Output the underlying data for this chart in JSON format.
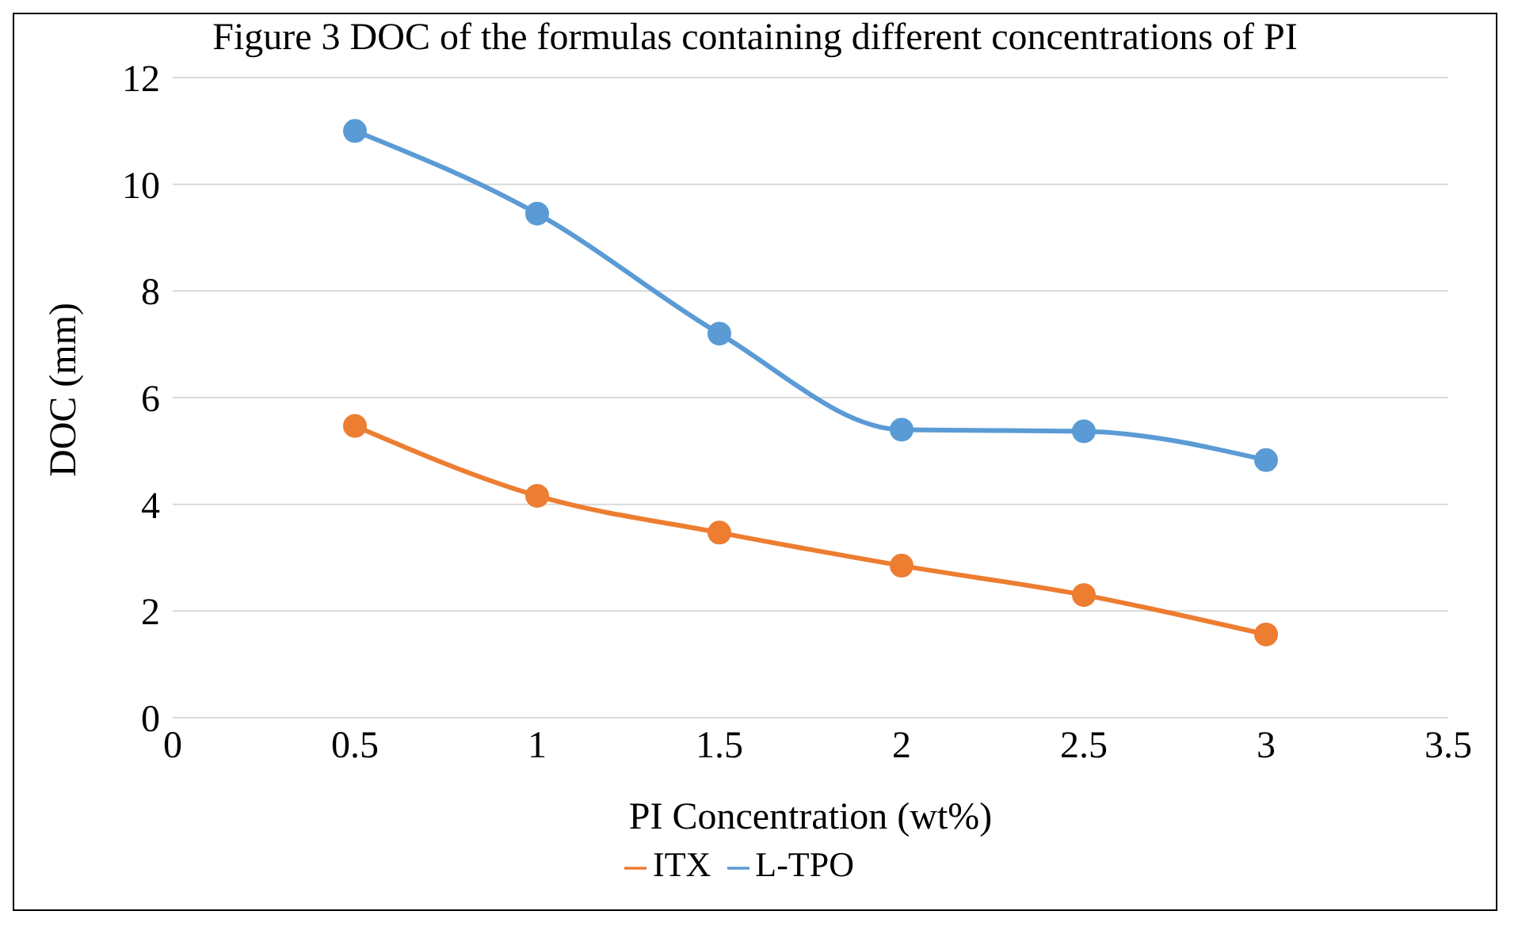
{
  "chart_data": {
    "type": "line",
    "title": "Figure 3 DOC of the formulas containing different concentrations of PI",
    "xlabel": "PI Concentration (wt%)",
    "ylabel": "DOC (mm)",
    "x": [
      0.5,
      1,
      1.5,
      2,
      2.5,
      3
    ],
    "series": [
      {
        "name": "L-TPO",
        "color": "#5b9bd5",
        "values": [
          11.0,
          9.45,
          7.2,
          5.4,
          5.37,
          4.83
        ]
      },
      {
        "name": "ITX",
        "color": "#ed7d31",
        "values": [
          5.47,
          4.16,
          3.47,
          2.85,
          2.3,
          1.56
        ]
      }
    ],
    "xlim": [
      0,
      3.5
    ],
    "xticks": [
      0,
      0.5,
      1,
      1.5,
      2,
      2.5,
      3,
      3.5
    ],
    "ylim": [
      0,
      12
    ],
    "yticks": [
      0,
      2,
      4,
      6,
      8,
      10,
      12
    ],
    "grid": "y",
    "legend": "bottom",
    "marker": "circle",
    "line_style": "solid"
  }
}
